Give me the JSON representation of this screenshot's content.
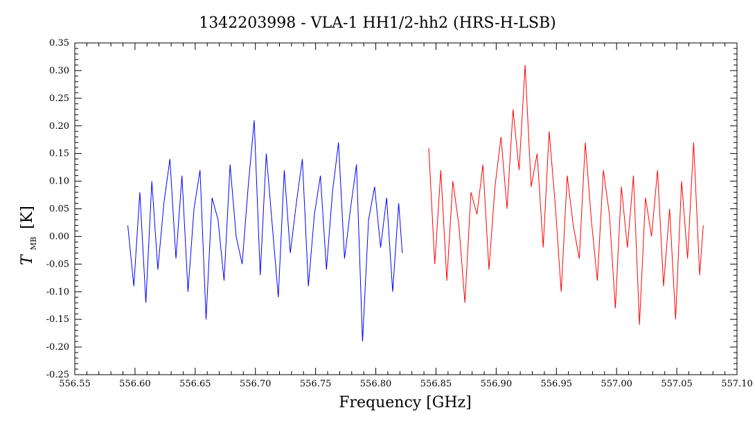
{
  "chart_data": {
    "type": "line",
    "title": "1342203998 - VLA-1 HH1/2-hh2 (HRS-H-LSB)",
    "xlabel": "Frequency [GHz]",
    "ylabel_main": "T",
    "ylabel_sub": "MB",
    "ylabel_unit": "[K]",
    "xlim": [
      556.55,
      557.1
    ],
    "ylim": [
      -0.25,
      0.35
    ],
    "xticks": [
      "556.55",
      "556.60",
      "556.65",
      "556.70",
      "556.75",
      "556.80",
      "556.85",
      "556.90",
      "556.95",
      "557.00",
      "557.05",
      "557.10"
    ],
    "yticks": [
      "-0.25",
      "-0.20",
      "-0.15",
      "-0.10",
      "-0.05",
      "0.00",
      "0.05",
      "0.10",
      "0.15",
      "0.20",
      "0.25",
      "0.30",
      "0.35"
    ],
    "grid": false,
    "series": [
      {
        "color": "#0000ff",
        "x": [
          556.594,
          556.599,
          556.604,
          556.609,
          556.614,
          556.619,
          556.624,
          556.629,
          556.634,
          556.639,
          556.644,
          556.649,
          556.654,
          556.659,
          556.664,
          556.669,
          556.674,
          556.679,
          556.684,
          556.689,
          556.694,
          556.699,
          556.704,
          556.709,
          556.714,
          556.719,
          556.724,
          556.729,
          556.734,
          556.739,
          556.744,
          556.749,
          556.754,
          556.759,
          556.764,
          556.769,
          556.774,
          556.779,
          556.784,
          556.789,
          556.794,
          556.799,
          556.804,
          556.809,
          556.814,
          556.819,
          556.822
        ],
        "y": [
          0.02,
          -0.09,
          0.08,
          -0.12,
          0.1,
          -0.06,
          0.06,
          0.14,
          -0.04,
          0.11,
          -0.1,
          0.05,
          0.12,
          -0.15,
          0.07,
          0.03,
          -0.08,
          0.13,
          0.0,
          -0.05,
          0.09,
          0.21,
          -0.07,
          0.15,
          0.02,
          -0.11,
          0.12,
          -0.03,
          0.06,
          0.14,
          -0.09,
          0.04,
          0.11,
          -0.06,
          0.08,
          0.17,
          -0.04,
          0.05,
          0.13,
          -0.19,
          0.03,
          0.09,
          -0.02,
          0.07,
          -0.1,
          0.06,
          -0.03
        ]
      },
      {
        "color": "#ff0000",
        "x": [
          556.844,
          556.849,
          556.854,
          556.859,
          556.864,
          556.869,
          556.874,
          556.879,
          556.884,
          556.889,
          556.894,
          556.899,
          556.904,
          556.909,
          556.914,
          556.919,
          556.924,
          556.929,
          556.934,
          556.939,
          556.944,
          556.949,
          556.954,
          556.959,
          556.964,
          556.969,
          556.974,
          556.979,
          556.984,
          556.989,
          556.994,
          556.999,
          557.004,
          557.009,
          557.014,
          557.019,
          557.024,
          557.029,
          557.034,
          557.039,
          557.044,
          557.049,
          557.054,
          557.059,
          557.064,
          557.069,
          557.072
        ],
        "y": [
          0.16,
          -0.05,
          0.12,
          -0.08,
          0.1,
          0.02,
          -0.12,
          0.08,
          0.04,
          0.13,
          -0.06,
          0.09,
          0.18,
          0.05,
          0.23,
          0.12,
          0.31,
          0.09,
          0.15,
          -0.02,
          0.19,
          0.06,
          -0.1,
          0.11,
          0.02,
          -0.04,
          0.17,
          0.03,
          -0.08,
          0.12,
          0.04,
          -0.13,
          0.09,
          -0.02,
          0.11,
          -0.16,
          0.07,
          0.0,
          0.12,
          -0.09,
          0.05,
          -0.15,
          0.1,
          -0.04,
          0.17,
          -0.07,
          0.02
        ]
      }
    ]
  }
}
